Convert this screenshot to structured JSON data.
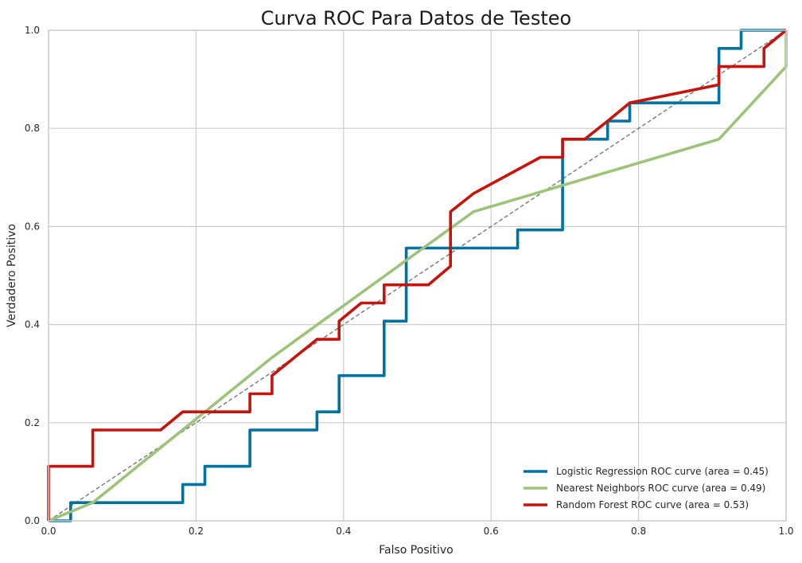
{
  "chart_data": {
    "type": "line",
    "title": "Curva ROC Para Datos de Testeo",
    "xlabel": "Falso Positivo",
    "ylabel": "Verdadero Positivo",
    "xlim": [
      0,
      1
    ],
    "ylim": [
      0,
      1
    ],
    "xticks": [
      "0.0",
      "0.2",
      "0.4",
      "0.6",
      "0.8",
      "1.0"
    ],
    "yticks": [
      "0.0",
      "0.2",
      "0.4",
      "0.6",
      "0.8",
      "1.0"
    ],
    "grid": true,
    "legend_position": "bottom-right",
    "series": [
      {
        "name": "Logistic Regression ROC curve (area = 0.45)",
        "color": "#0072a0",
        "x": [
          0,
          0.03,
          0.03,
          0.182,
          0.182,
          0.212,
          0.212,
          0.273,
          0.273,
          0.364,
          0.364,
          0.394,
          0.394,
          0.455,
          0.455,
          0.485,
          0.485,
          0.636,
          0.636,
          0.697,
          0.697,
          0.758,
          0.758,
          0.788,
          0.788,
          0.909,
          0.909,
          0.939,
          0.939,
          1.0
        ],
        "y": [
          0,
          0,
          0.037,
          0.037,
          0.074,
          0.074,
          0.111,
          0.111,
          0.185,
          0.185,
          0.222,
          0.222,
          0.296,
          0.296,
          0.407,
          0.407,
          0.556,
          0.556,
          0.593,
          0.593,
          0.778,
          0.778,
          0.815,
          0.815,
          0.852,
          0.852,
          0.963,
          0.963,
          1.0,
          1.0
        ]
      },
      {
        "name": "Nearest Neighbors ROC curve (area = 0.49)",
        "color": "#9dc37a",
        "x": [
          0,
          0.06,
          0.303,
          0.576,
          0.909,
          1.0,
          1.0
        ],
        "y": [
          0,
          0.037,
          0.333,
          0.63,
          0.778,
          0.926,
          1.0
        ]
      },
      {
        "name": "Random Forest ROC curve (area = 0.53)",
        "color": "#c4140c",
        "x": [
          0,
          0,
          0.06,
          0.06,
          0.152,
          0.182,
          0.273,
          0.273,
          0.303,
          0.303,
          0.364,
          0.394,
          0.394,
          0.424,
          0.455,
          0.455,
          0.515,
          0.545,
          0.545,
          0.576,
          0.667,
          0.697,
          0.697,
          0.727,
          0.758,
          0.788,
          0.909,
          0.909,
          0.97,
          0.97,
          1.0
        ],
        "y": [
          0,
          0.111,
          0.111,
          0.185,
          0.185,
          0.222,
          0.222,
          0.259,
          0.259,
          0.296,
          0.37,
          0.37,
          0.407,
          0.444,
          0.444,
          0.481,
          0.481,
          0.519,
          0.63,
          0.667,
          0.741,
          0.741,
          0.778,
          0.778,
          0.815,
          0.852,
          0.889,
          0.926,
          0.926,
          0.963,
          1.0
        ]
      }
    ],
    "reference_line": {
      "x": [
        0,
        1
      ],
      "y": [
        0,
        1
      ],
      "style": "dashed",
      "color": "#777777"
    }
  }
}
